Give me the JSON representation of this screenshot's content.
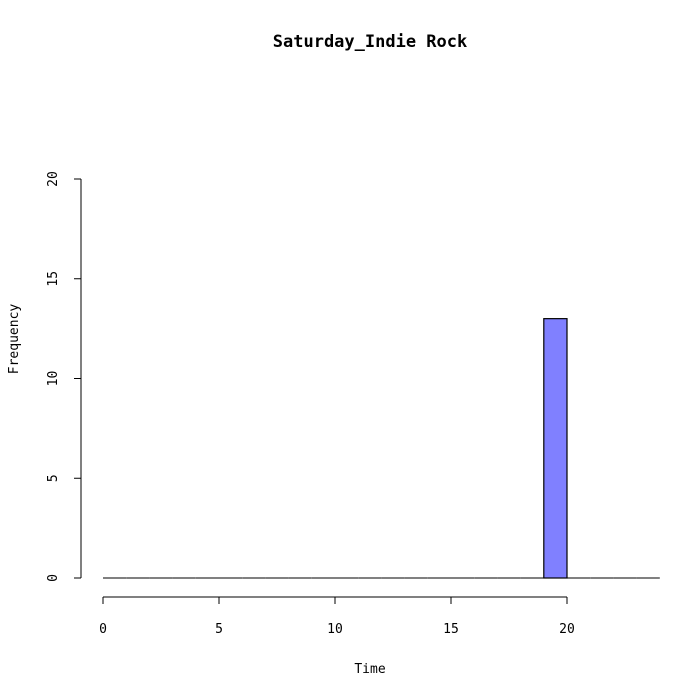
{
  "chart_data": {
    "type": "bar",
    "title": "Saturday_Indie Rock",
    "xlabel": "Time",
    "ylabel": "Frequency",
    "bin_width": 1,
    "bins": [
      0,
      1,
      2,
      3,
      4,
      5,
      6,
      7,
      8,
      9,
      10,
      11,
      12,
      13,
      14,
      15,
      16,
      17,
      18,
      19,
      20,
      21,
      22,
      23
    ],
    "values": [
      0,
      0,
      0,
      0,
      0,
      0,
      0,
      0,
      0,
      0,
      0,
      0,
      0,
      0,
      0,
      0,
      0,
      0,
      0,
      13,
      0,
      0,
      0,
      0
    ],
    "xlim": [
      0,
      24
    ],
    "ylim": [
      0,
      20
    ],
    "x_ticks": [
      "0",
      "5",
      "10",
      "15",
      "20"
    ],
    "y_ticks": [
      "0",
      "5",
      "10",
      "15",
      "20"
    ],
    "bar_color": "#8080ff",
    "grid": false,
    "legend": "none"
  }
}
